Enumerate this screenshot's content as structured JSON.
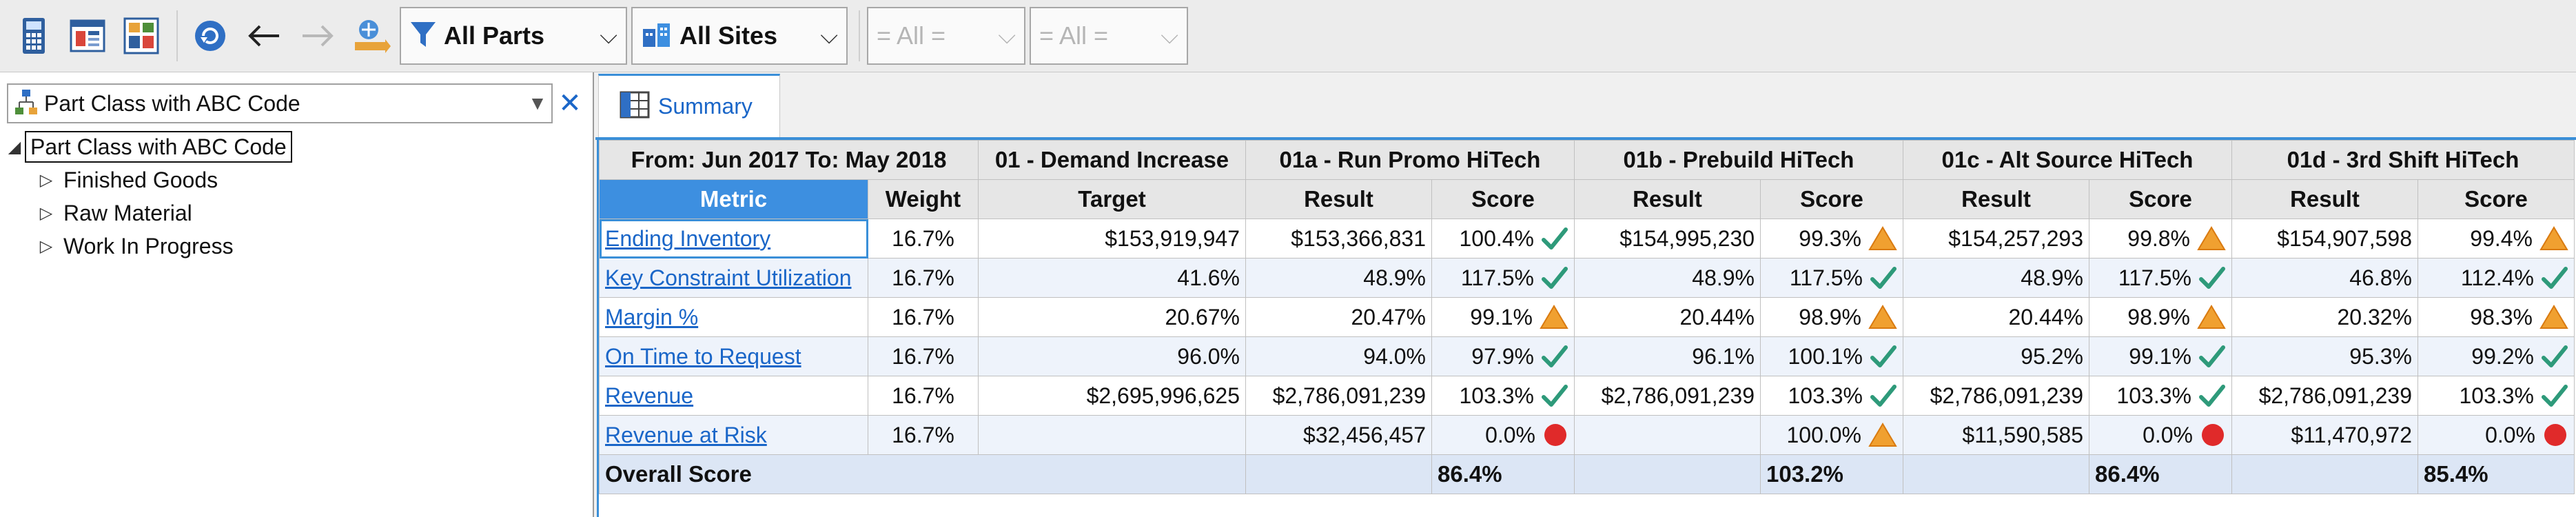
{
  "toolbar": {
    "filters": [
      {
        "label": "All Parts",
        "icon": "funnel-icon"
      },
      {
        "label": "All Sites",
        "icon": "sites-icon"
      }
    ],
    "disabled_combos": [
      {
        "label": "= All ="
      },
      {
        "label": "= All ="
      }
    ]
  },
  "left_panel": {
    "selector": "Part Class with ABC Code",
    "tree": {
      "root": "Part Class with ABC Code",
      "children": [
        "Finished Goods",
        "Raw Material",
        "Work In Progress"
      ]
    }
  },
  "tab": {
    "label": "Summary"
  },
  "grid": {
    "period": "From: Jun 2017   To: May 2018",
    "scenarios": [
      "01 - Demand Increase",
      "01a - Run Promo HiTech",
      "01b - Prebuild HiTech",
      "01c - Alt Source HiTech",
      "01d - 3rd Shift HiTech"
    ],
    "headers": {
      "metric": "Metric",
      "weight": "Weight",
      "target": "Target",
      "result": "Result",
      "score": "Score"
    },
    "rows": [
      {
        "metric": "Ending Inventory",
        "weight": "16.7%",
        "target": "$153,919,947",
        "cells": [
          {
            "result": "$153,366,831",
            "score": "100.4%",
            "status": "ok"
          },
          {
            "result": "$154,995,230",
            "score": "99.3%",
            "status": "warn"
          },
          {
            "result": "$154,257,293",
            "score": "99.8%",
            "status": "warn"
          },
          {
            "result": "$154,907,598",
            "score": "99.4%",
            "status": "warn"
          }
        ]
      },
      {
        "metric": "Key Constraint Utilization",
        "weight": "16.7%",
        "target": "41.6%",
        "cells": [
          {
            "result": "48.9%",
            "score": "117.5%",
            "status": "ok"
          },
          {
            "result": "48.9%",
            "score": "117.5%",
            "status": "ok"
          },
          {
            "result": "48.9%",
            "score": "117.5%",
            "status": "ok"
          },
          {
            "result": "46.8%",
            "score": "112.4%",
            "status": "ok"
          }
        ]
      },
      {
        "metric": "Margin %",
        "weight": "16.7%",
        "target": "20.67%",
        "cells": [
          {
            "result": "20.47%",
            "score": "99.1%",
            "status": "warn"
          },
          {
            "result": "20.44%",
            "score": "98.9%",
            "status": "warn"
          },
          {
            "result": "20.44%",
            "score": "98.9%",
            "status": "warn"
          },
          {
            "result": "20.32%",
            "score": "98.3%",
            "status": "warn"
          }
        ]
      },
      {
        "metric": "On Time to Request",
        "weight": "16.7%",
        "target": "96.0%",
        "cells": [
          {
            "result": "94.0%",
            "score": "97.9%",
            "status": "ok"
          },
          {
            "result": "96.1%",
            "score": "100.1%",
            "status": "ok"
          },
          {
            "result": "95.2%",
            "score": "99.1%",
            "status": "ok"
          },
          {
            "result": "95.3%",
            "score": "99.2%",
            "status": "ok"
          }
        ]
      },
      {
        "metric": "Revenue",
        "weight": "16.7%",
        "target": "$2,695,996,625",
        "cells": [
          {
            "result": "$2,786,091,239",
            "score": "103.3%",
            "status": "ok"
          },
          {
            "result": "$2,786,091,239",
            "score": "103.3%",
            "status": "ok"
          },
          {
            "result": "$2,786,091,239",
            "score": "103.3%",
            "status": "ok"
          },
          {
            "result": "$2,786,091,239",
            "score": "103.3%",
            "status": "ok"
          }
        ]
      },
      {
        "metric": "Revenue at Risk",
        "weight": "16.7%",
        "target": "",
        "cells": [
          {
            "result": "$32,456,457",
            "score": "0.0%",
            "status": "bad"
          },
          {
            "result": "",
            "score": "100.0%",
            "status": "warn"
          },
          {
            "result": "$11,590,585",
            "score": "0.0%",
            "status": "bad"
          },
          {
            "result": "$11,470,972",
            "score": "0.0%",
            "status": "bad"
          }
        ]
      }
    ],
    "overall": {
      "label": "Overall Score",
      "scores": [
        "86.4%",
        "103.2%",
        "86.4%",
        "85.4%"
      ]
    }
  }
}
